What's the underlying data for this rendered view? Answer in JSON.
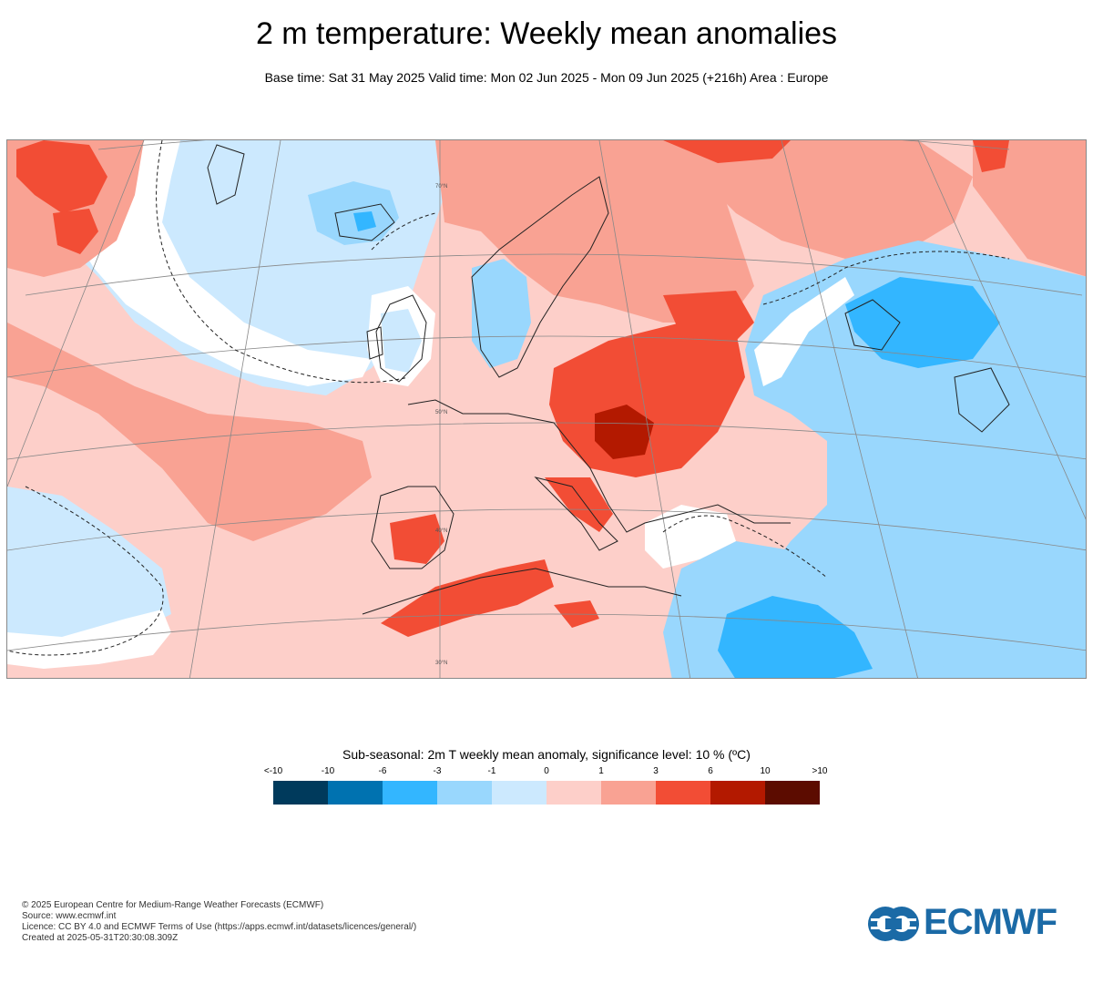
{
  "header": {
    "title": "2 m temperature: Weekly mean anomalies",
    "subtitle": "Base time: Sat 31 May 2025 Valid time: Mon 02 Jun 2025 - Mon 09 Jun 2025 (+216h) Area : Europe"
  },
  "map": {
    "area": "Europe",
    "latitude_labels": [
      "70°N",
      "50°N",
      "40°N",
      "30°N"
    ],
    "palette": {
      "lt_m10": "#003a5c",
      "m10_m6": "#0072b0",
      "m6_m3": "#33b6ff",
      "m3_m1": "#99d7fd",
      "m1_0": "#cce9fe",
      "0_1": "#fdcfc9",
      "1_3": "#f9a293",
      "3_6": "#f24d35",
      "6_10": "#b31900",
      "gt_10": "#5c0c00"
    },
    "regions": [
      {
        "name": "north-atlantic",
        "category": "m1_0"
      },
      {
        "name": "subtropical-atlantic",
        "category": "1_3"
      },
      {
        "name": "central-europe",
        "category": "3_6"
      },
      {
        "name": "hungary-balkans",
        "category": "6_10"
      },
      {
        "name": "north-africa",
        "category": "3_6"
      },
      {
        "name": "iberia",
        "category": "3_6"
      },
      {
        "name": "eastern-mediterranean",
        "category": "m3_m1"
      },
      {
        "name": "levant-core",
        "category": "m6_m3"
      },
      {
        "name": "russia-kazakhstan",
        "category": "m6_m3"
      },
      {
        "name": "iceland",
        "category": "m3_m1"
      },
      {
        "name": "scandinavia-west",
        "category": "m3_m1"
      },
      {
        "name": "northern-russia",
        "category": "1_3"
      },
      {
        "name": "svalbard",
        "category": "3_6"
      }
    ]
  },
  "legend": {
    "title": "Sub-seasonal: 2m T weekly mean anomaly, significance level: 10 % (ºC)",
    "ticks": [
      "<-10",
      "-10",
      "-6",
      "-3",
      "-1",
      "0",
      "1",
      "3",
      "6",
      "10",
      ">10"
    ],
    "colors": [
      "#003a5c",
      "#0072b0",
      "#33b6ff",
      "#99d7fd",
      "#cce9fe",
      "#fdcfc9",
      "#f9a293",
      "#f24d35",
      "#b31900",
      "#5c0c00"
    ]
  },
  "footer": {
    "line1": "© 2025 European Centre for Medium-Range Weather Forecasts (ECMWF)",
    "line2": "Source: www.ecmwf.int",
    "line3": "Licence: CC BY 4.0 and ECMWF Terms of Use (https://apps.ecmwf.int/datasets/licences/general/)",
    "line4": "Created at 2025-05-31T20:30:08.309Z"
  },
  "logo": {
    "text": "ECMWF",
    "color": "#1b6aa6"
  }
}
